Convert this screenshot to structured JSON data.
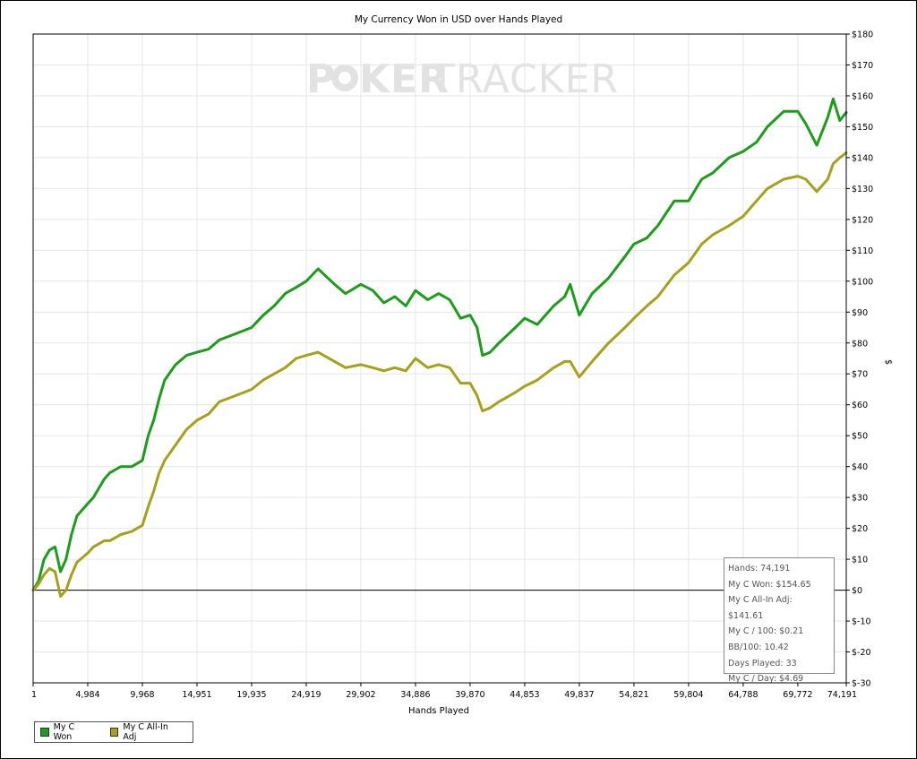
{
  "chart_data": {
    "type": "line",
    "title": "My Currency Won in USD over Hands Played",
    "xlabel": "Hands Played",
    "ylabel": "$",
    "xlim": [
      1,
      74191
    ],
    "ylim": [
      -30,
      180
    ],
    "x_ticks": [
      1,
      4984,
      9968,
      14951,
      19935,
      24919,
      29902,
      34886,
      39870,
      44853,
      49837,
      54821,
      59804,
      64788,
      69772,
      74191
    ],
    "x_tick_labels": [
      "1",
      "4,984",
      "9,968",
      "14,951",
      "19,935",
      "24,919",
      "29,902",
      "34,886",
      "39,870",
      "44,853",
      "49,837",
      "54,821",
      "59,804",
      "64,788",
      "69,772",
      "74,191"
    ],
    "y_ticks": [
      -30,
      -20,
      -10,
      0,
      10,
      20,
      30,
      40,
      50,
      60,
      70,
      80,
      90,
      100,
      110,
      120,
      130,
      140,
      150,
      160,
      170,
      180
    ],
    "y_tick_labels": [
      "$-30",
      "$-20",
      "$-10",
      "$0",
      "$10",
      "$20",
      "$30",
      "$40",
      "$50",
      "$60",
      "$70",
      "$80",
      "$90",
      "$100",
      "$110",
      "$120",
      "$130",
      "$140",
      "$150",
      "$160",
      "$170",
      "$180"
    ],
    "grid": true,
    "legend": "bottom-left",
    "series": [
      {
        "name": "My C Won",
        "color": "#1a9e1a",
        "x": [
          1,
          500,
          1000,
          1500,
          2000,
          2500,
          3000,
          3500,
          4000,
          4984,
          5500,
          6500,
          7000,
          8000,
          9000,
          9968,
          10500,
          11000,
          11500,
          12000,
          13000,
          14000,
          14951,
          16000,
          17000,
          18500,
          19935,
          21000,
          22000,
          23000,
          24000,
          24919,
          26000,
          27500,
          28500,
          29902,
          31000,
          32000,
          33000,
          34000,
          34886,
          36000,
          37000,
          38000,
          39000,
          39870,
          40500,
          41000,
          41700,
          42500,
          44000,
          44853,
          46000,
          47500,
          48500,
          49000,
          49837,
          51000,
          52500,
          54000,
          54821,
          56000,
          57000,
          58500,
          59804,
          61000,
          62000,
          63500,
          64788,
          66000,
          67000,
          68500,
          69772,
          70500,
          71500,
          72500,
          73000,
          73600,
          74191
        ],
        "values": [
          0,
          3,
          10,
          13,
          14,
          6,
          10,
          18,
          24,
          28,
          30,
          36,
          38,
          40,
          40,
          42,
          50,
          55,
          62,
          68,
          73,
          76,
          77,
          78,
          81,
          83,
          85,
          89,
          92,
          96,
          98,
          100,
          104,
          99,
          96,
          99,
          97,
          93,
          95,
          92,
          97,
          94,
          96,
          94,
          88,
          89,
          85,
          76,
          77,
          80,
          85,
          88,
          86,
          92,
          95,
          99,
          89,
          96,
          101,
          108,
          112,
          114,
          118,
          126,
          126,
          133,
          135,
          140,
          142,
          145,
          150,
          155,
          155,
          151,
          144,
          153,
          159,
          152,
          154.65
        ]
      },
      {
        "name": "My C All-In Adj",
        "color": "#a8a019",
        "x": [
          1,
          500,
          1000,
          1500,
          2000,
          2500,
          3000,
          3500,
          4000,
          4984,
          5500,
          6500,
          7000,
          8000,
          9000,
          9968,
          10500,
          11000,
          11500,
          12000,
          13000,
          14000,
          14951,
          16000,
          17000,
          18500,
          19935,
          21000,
          22000,
          23000,
          24000,
          24919,
          26000,
          27500,
          28500,
          29902,
          31000,
          32000,
          33000,
          34000,
          34886,
          36000,
          37000,
          38000,
          39000,
          39870,
          40500,
          41000,
          41700,
          42500,
          44000,
          44853,
          46000,
          47500,
          48500,
          49000,
          49837,
          51000,
          52500,
          54000,
          54821,
          56000,
          57000,
          58500,
          59804,
          61000,
          62000,
          63500,
          64788,
          66000,
          67000,
          68500,
          69772,
          70500,
          71500,
          72500,
          73000,
          73600,
          74191
        ],
        "values": [
          0,
          2,
          5,
          7,
          6,
          -2,
          0,
          5,
          9,
          12,
          14,
          16,
          16,
          18,
          19,
          21,
          27,
          32,
          38,
          42,
          47,
          52,
          55,
          57,
          61,
          63,
          65,
          68,
          70,
          72,
          75,
          76,
          77,
          74,
          72,
          73,
          72,
          71,
          72,
          71,
          75,
          72,
          73,
          72,
          67,
          67,
          63,
          58,
          59,
          61,
          64,
          66,
          68,
          72,
          74,
          74,
          69,
          74,
          80,
          85,
          88,
          92,
          95,
          102,
          106,
          112,
          115,
          118,
          121,
          126,
          130,
          133,
          134,
          133,
          129,
          133,
          138,
          140,
          141.61
        ]
      }
    ],
    "annotations": {
      "zero_line": 0
    }
  },
  "watermark": {
    "text_left": "P",
    "text_mid": "KER",
    "text_right": "TRACKER"
  },
  "stats": [
    "Hands: 74,191",
    "My C Won: $154.65",
    "My C All-In Adj: $141.61",
    "My C / 100: $0.21",
    "BB/100: 10.42",
    "Days Played: 33",
    "My C / Day: $4.69"
  ],
  "legend": [
    {
      "label": "My C Won",
      "color": "#1a9e1a"
    },
    {
      "label": "My C All-In Adj",
      "color": "#a8a019"
    }
  ]
}
